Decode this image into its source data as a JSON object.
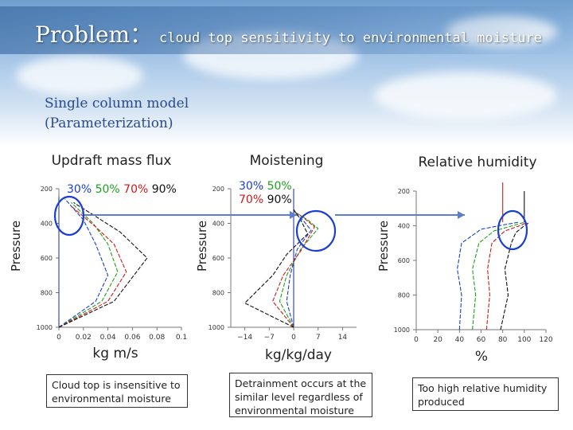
{
  "header": {
    "title": "Problem：",
    "title_sub": "cloud top sensitivity to environmental moisture",
    "model_line1": "Single column model",
    "model_line2": "(Parameterization)"
  },
  "colors": {
    "30%": "#1a3fd0",
    "50%": "#1ea01e",
    "70%": "#d01818",
    "90%": "#111111",
    "vline": "#1a2a9a",
    "arrow": "#5b7fd0",
    "circle": "#1a3fd0"
  },
  "legend": [
    {
      "label": "30%",
      "color": "#1a3fd0"
    },
    {
      "label": "50%",
      "color": "#1ea01e"
    },
    {
      "label": "70%",
      "color": "#d01818"
    },
    {
      "label": "90%",
      "color": "#111111"
    }
  ],
  "panels": [
    {
      "title": "Updraft mass flux",
      "ylabel": "Pressure",
      "xunit": "kg m/s",
      "note": "Cloud top is insensitive to environmental moisture"
    },
    {
      "title": "Moistening",
      "ylabel": "Pressure",
      "xunit": "kg/kg/day",
      "note": "Detrainment occurs at the similar level regardless of environmental moisture"
    },
    {
      "title": "Relative humidity",
      "ylabel": "Pressure",
      "xunit": "%",
      "note": "Too high relative humidity produced"
    }
  ],
  "chart_data": [
    {
      "type": "line",
      "title": "Updraft mass flux",
      "xlabel": "kg m/s",
      "ylabel": "Pressure",
      "xlim": [
        0,
        0.1
      ],
      "ylim": [
        1000,
        200
      ],
      "yticks": [
        "200",
        "400",
        "600",
        "800",
        "1000"
      ],
      "xticks": [
        "0",
        "0.02",
        "0.04",
        "0.06",
        "0.08",
        "0.1"
      ],
      "series": [
        {
          "name": "30%",
          "points": [
            [
              0,
              1000
            ],
            [
              0.03,
              850
            ],
            [
              0.04,
              700
            ],
            [
              0.03,
              520
            ],
            [
              0.02,
              380
            ],
            [
              0.005,
              260
            ]
          ]
        },
        {
          "name": "50%",
          "points": [
            [
              0,
              1000
            ],
            [
              0.035,
              850
            ],
            [
              0.048,
              680
            ],
            [
              0.04,
              520
            ],
            [
              0.028,
              400
            ],
            [
              0.01,
              280
            ]
          ]
        },
        {
          "name": "70%",
          "points": [
            [
              0,
              1000
            ],
            [
              0.04,
              850
            ],
            [
              0.055,
              680
            ],
            [
              0.045,
              520
            ],
            [
              0.03,
              420
            ],
            [
              0.01,
              300
            ]
          ]
        },
        {
          "name": "90%",
          "points": [
            [
              0,
              1000
            ],
            [
              0.045,
              850
            ],
            [
              0.072,
              600
            ],
            [
              0.05,
              450
            ],
            [
              0.03,
              360
            ],
            [
              0.012,
              280
            ]
          ]
        }
      ]
    },
    {
      "type": "line",
      "title": "Moistening",
      "xlabel": "kg/kg/day",
      "ylabel": "Pressure",
      "xlim": [
        -18,
        18
      ],
      "ylim": [
        1000,
        200
      ],
      "yticks": [
        "200",
        "400",
        "600",
        "800",
        "1000"
      ],
      "xticks": [
        "−14",
        "−7",
        "0",
        "7",
        "14"
      ],
      "series": [
        {
          "name": "30%",
          "points": [
            [
              0,
              1000
            ],
            [
              -2,
              850
            ],
            [
              -1,
              700
            ],
            [
              1,
              550
            ],
            [
              5,
              440
            ],
            [
              3,
              390
            ],
            [
              0,
              330
            ]
          ]
        },
        {
          "name": "50%",
          "points": [
            [
              0,
              1000
            ],
            [
              -4,
              850
            ],
            [
              -2,
              700
            ],
            [
              2,
              550
            ],
            [
              7,
              430
            ],
            [
              4,
              380
            ],
            [
              0,
              330
            ]
          ]
        },
        {
          "name": "70%",
          "points": [
            [
              0,
              1000
            ],
            [
              -6,
              850
            ],
            [
              -3,
              700
            ],
            [
              2,
              560
            ],
            [
              6,
              420
            ],
            [
              3,
              370
            ],
            [
              0,
              330
            ]
          ]
        },
        {
          "name": "90%",
          "points": [
            [
              0,
              1000
            ],
            [
              -14,
              860
            ],
            [
              -6,
              700
            ],
            [
              -2,
              580
            ],
            [
              4,
              460
            ],
            [
              2,
              380
            ],
            [
              0,
              320
            ]
          ]
        }
      ]
    },
    {
      "type": "line",
      "title": "Relative humidity",
      "xlabel": "%",
      "ylabel": "Pressure",
      "xlim": [
        0,
        120
      ],
      "ylim": [
        1000,
        200
      ],
      "yticks": [
        "200",
        "400",
        "600",
        "800",
        "1000"
      ],
      "xticks": [
        "0",
        "20",
        "40",
        "60",
        "80",
        "100",
        "120"
      ],
      "series": [
        {
          "name": "30%",
          "points": [
            [
              40,
              1000
            ],
            [
              42,
              800
            ],
            [
              38,
              650
            ],
            [
              42,
              500
            ],
            [
              60,
              420
            ],
            [
              85,
              390
            ],
            [
              95,
              380
            ]
          ]
        },
        {
          "name": "50%",
          "points": [
            [
              52,
              1000
            ],
            [
              55,
              800
            ],
            [
              52,
              650
            ],
            [
              58,
              500
            ],
            [
              72,
              430
            ],
            [
              92,
              395
            ],
            [
              100,
              380
            ]
          ]
        },
        {
          "name": "70%",
          "points": [
            [
              65,
              1000
            ],
            [
              68,
              800
            ],
            [
              66,
              650
            ],
            [
              70,
              500
            ],
            [
              82,
              430
            ],
            [
              98,
              395
            ],
            [
              102,
              380
            ]
          ]
        },
        {
          "name": "90%",
          "points": [
            [
              78,
              1000
            ],
            [
              85,
              800
            ],
            [
              82,
              650
            ],
            [
              88,
              500
            ],
            [
              92,
              440
            ],
            [
              100,
              400
            ],
            [
              105,
              380
            ]
          ]
        },
        {
          "name": "",
          "color": "#d01818",
          "points": [
            [
              80,
              380
            ],
            [
              80,
              150
            ]
          ]
        },
        {
          "name": "",
          "color": "#111111",
          "points": [
            [
              100,
              380
            ],
            [
              100,
              200
            ]
          ]
        }
      ]
    }
  ]
}
